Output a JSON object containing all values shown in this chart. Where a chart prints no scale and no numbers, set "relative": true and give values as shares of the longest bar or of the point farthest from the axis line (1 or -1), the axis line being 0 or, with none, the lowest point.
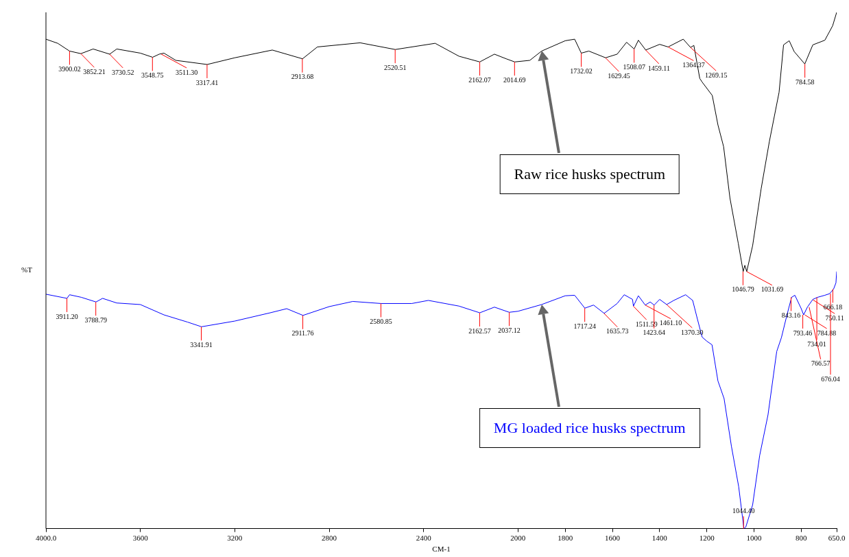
{
  "chart_data": {
    "type": "line",
    "xlabel": "CM-1",
    "ylabel": "%T",
    "relative": true,
    "xlim": [
      4000,
      650
    ],
    "xticks": [
      {
        "value": 4000,
        "label": "4000.0"
      },
      3600,
      3200,
      2800,
      2400,
      2000,
      1800,
      1600,
      1400,
      1200,
      1000,
      800,
      {
        "value": 650,
        "label": "650.0"
      }
    ],
    "series": [
      {
        "name": "Raw rice husks spectrum",
        "color": "#000000",
        "x": [
          4000,
          3950,
          3900,
          3852,
          3800,
          3730,
          3700,
          3600,
          3548,
          3520,
          3500,
          3450,
          3317,
          3200,
          3041,
          2913,
          2850,
          2669,
          2520,
          2351,
          2250,
          2162,
          2100,
          2050,
          2014,
          1950,
          1900,
          1800,
          1760,
          1732,
          1700,
          1629,
          1580,
          1540,
          1508,
          1490,
          1459,
          1400,
          1364,
          1300,
          1269,
          1255,
          1230,
          1220,
          1177,
          1153,
          1129,
          1102,
          1067,
          1046,
          1039,
          1031,
          1006,
          970,
          935,
          894,
          875,
          851,
          830,
          785,
          751,
          700,
          667,
          650
        ],
        "values": [
          0.948,
          0.94,
          0.925,
          0.92,
          0.929,
          0.919,
          0.929,
          0.921,
          0.913,
          0.919,
          0.921,
          0.907,
          0.899,
          0.912,
          0.927,
          0.91,
          0.933,
          0.941,
          0.928,
          0.94,
          0.915,
          0.904,
          0.919,
          0.91,
          0.904,
          0.907,
          0.925,
          0.945,
          0.948,
          0.921,
          0.925,
          0.912,
          0.919,
          0.942,
          0.929,
          0.946,
          0.927,
          0.938,
          0.933,
          0.948,
          0.932,
          0.936,
          0.872,
          0.865,
          0.839,
          0.782,
          0.74,
          0.64,
          0.553,
          0.498,
          0.51,
          0.498,
          0.548,
          0.658,
          0.75,
          0.845,
          0.937,
          0.945,
          0.924,
          0.9,
          0.937,
          0.946,
          0.974,
          1.0
        ]
      },
      {
        "name": "MG loaded rice husks spectrum",
        "color": "#0000ff",
        "x": [
          4000,
          3911,
          3900,
          3850,
          3788,
          3760,
          3700,
          3600,
          3500,
          3400,
          3341,
          3200,
          3050,
          2980,
          2911,
          2800,
          2700,
          2580,
          2450,
          2380,
          2250,
          2162,
          2100,
          2037,
          2000,
          1900,
          1800,
          1760,
          1717,
          1680,
          1635,
          1580,
          1550,
          1515,
          1511,
          1490,
          1461,
          1440,
          1423,
          1400,
          1370,
          1340,
          1290,
          1260,
          1240,
          1220,
          1200,
          1178,
          1153,
          1127,
          1096,
          1065,
          1043,
          1035,
          1006,
          976,
          941,
          904,
          884,
          861,
          841,
          827,
          800,
          790,
          774,
          751,
          731,
          700,
          680,
          663,
          653,
          650
        ],
        "values": [
          0.454,
          0.446,
          0.453,
          0.448,
          0.439,
          0.446,
          0.437,
          0.434,
          0.414,
          0.4,
          0.391,
          0.402,
          0.418,
          0.426,
          0.413,
          0.43,
          0.44,
          0.436,
          0.436,
          0.442,
          0.431,
          0.418,
          0.429,
          0.419,
          0.421,
          0.434,
          0.451,
          0.452,
          0.427,
          0.433,
          0.417,
          0.436,
          0.453,
          0.444,
          0.431,
          0.451,
          0.433,
          0.439,
          0.433,
          0.444,
          0.434,
          0.442,
          0.453,
          0.442,
          0.406,
          0.371,
          0.363,
          0.356,
          0.286,
          0.252,
          0.16,
          0.081,
          0,
          0.003,
          0.046,
          0.142,
          0.22,
          0.343,
          0.37,
          0.413,
          0.448,
          0.452,
          0.426,
          0.414,
          0.429,
          0.444,
          0.448,
          0.452,
          0.455,
          0.464,
          0.476,
          0.498
        ]
      }
    ],
    "annotations": [
      {
        "text": "3900.02",
        "x": 3900.02,
        "y": 0.925
      },
      {
        "text": "3852.21",
        "x": 3852.21,
        "y": 0.92
      },
      {
        "text": "3730.52",
        "x": 3730.52,
        "y": 0.919
      },
      {
        "text": "3548.75",
        "x": 3548.75,
        "y": 0.913
      },
      {
        "text": "3511.30",
        "x": 3511.3,
        "y": 0.919
      },
      {
        "text": "3317.41",
        "x": 3317.41,
        "y": 0.899
      },
      {
        "text": "2913.68",
        "x": 2913.68,
        "y": 0.91
      },
      {
        "text": "2520.51",
        "x": 2520.51,
        "y": 0.928
      },
      {
        "text": "2162.07",
        "x": 2162.07,
        "y": 0.904
      },
      {
        "text": "2014.69",
        "x": 2014.69,
        "y": 0.904
      },
      {
        "text": "1732.02",
        "x": 1732.02,
        "y": 0.921
      },
      {
        "text": "1629.45",
        "x": 1629.45,
        "y": 0.912
      },
      {
        "text": "1508.07",
        "x": 1508.07,
        "y": 0.929
      },
      {
        "text": "1459.11",
        "x": 1459.11,
        "y": 0.927
      },
      {
        "text": "1364.37",
        "x": 1364.37,
        "y": 0.933
      },
      {
        "text": "1269.15",
        "x": 1269.15,
        "y": 0.932
      },
      {
        "text": "1046.79",
        "x": 1046.79,
        "y": 0.498
      },
      {
        "text": "1031.69",
        "x": 1031.69,
        "y": 0.498
      },
      {
        "text": "784.58",
        "x": 784.58,
        "y": 0.9
      },
      {
        "text": "3911.20",
        "x": 3911.2,
        "y": 0.446
      },
      {
        "text": "3788.79",
        "x": 3788.79,
        "y": 0.439
      },
      {
        "text": "3341.91",
        "x": 3341.91,
        "y": 0.391
      },
      {
        "text": "2911.76",
        "x": 2911.76,
        "y": 0.413
      },
      {
        "text": "2580.85",
        "x": 2580.85,
        "y": 0.436
      },
      {
        "text": "2162.57",
        "x": 2162.57,
        "y": 0.418
      },
      {
        "text": "2037.12",
        "x": 2037.12,
        "y": 0.419
      },
      {
        "text": "1717.24",
        "x": 1717.24,
        "y": 0.427
      },
      {
        "text": "1635.73",
        "x": 1635.73,
        "y": 0.417
      },
      {
        "text": "1511.59",
        "x": 1511.59,
        "y": 0.431
      },
      {
        "text": "1461.10",
        "x": 1461.1,
        "y": 0.433
      },
      {
        "text": "1423.64",
        "x": 1423.64,
        "y": 0.433
      },
      {
        "text": "1370.30",
        "x": 1370.3,
        "y": 0.434
      },
      {
        "text": "1044.40",
        "x": 1044.4,
        "y": 0
      },
      {
        "text": "843.16",
        "x": 843.16,
        "y": 0.448
      },
      {
        "text": "793.46",
        "x": 793.46,
        "y": 0.414
      },
      {
        "text": "784.88",
        "x": 784.88,
        "y": 0.414
      },
      {
        "text": "766.57",
        "x": 766.57,
        "y": 0.429
      },
      {
        "text": "750.11",
        "x": 750.11,
        "y": 0.443
      },
      {
        "text": "734.01",
        "x": 734.01,
        "y": 0.448
      },
      {
        "text": "676.04",
        "x": 676.04,
        "y": 0.455
      },
      {
        "text": "666.18",
        "x": 666.18,
        "y": 0.464
      }
    ]
  }
}
